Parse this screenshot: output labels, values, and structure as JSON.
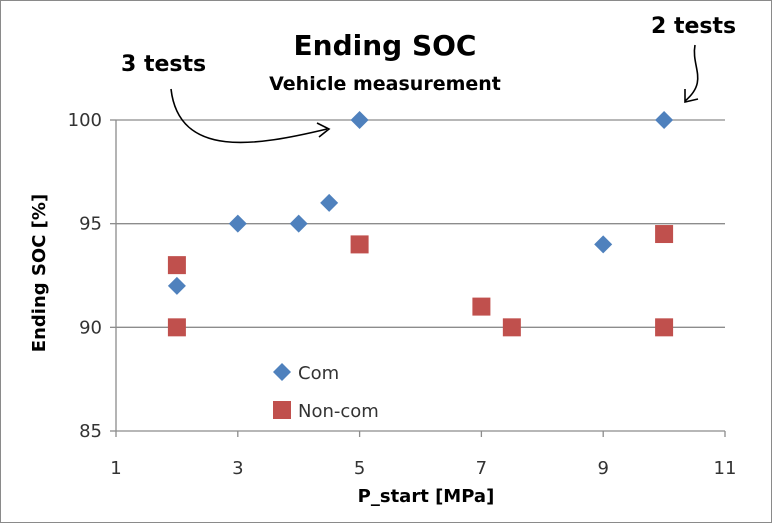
{
  "chart_data": {
    "type": "scatter",
    "title": "Ending SOC",
    "subtitle": "Vehicle measurement",
    "xlabel": "P_start [MPa]",
    "ylabel": "Ending SOC [%]",
    "xlim": [
      1,
      11
    ],
    "ylim": [
      85,
      100
    ],
    "xticks": [
      "1",
      "3",
      "5",
      "7",
      "9",
      "11"
    ],
    "yticks": [
      "85",
      "90",
      "95",
      "100"
    ],
    "xtick_values": [
      1,
      3,
      5,
      7,
      9,
      11
    ],
    "ytick_values": [
      85,
      90,
      95,
      100
    ],
    "grid": "horizontal",
    "legend_position": "lower-left",
    "series": [
      {
        "name": "Com",
        "marker": "diamond",
        "color": "#4f81bd",
        "x": [
          2,
          3,
          4,
          4.5,
          5,
          9,
          10
        ],
        "y": [
          92,
          95,
          95,
          96,
          100,
          94,
          100
        ]
      },
      {
        "name": "Non-com",
        "marker": "square",
        "color": "#c0504d",
        "x": [
          2,
          2,
          5,
          7,
          7.5,
          10,
          10
        ],
        "y": [
          93,
          90,
          94,
          91,
          90,
          94.5,
          90
        ]
      }
    ],
    "annotations": [
      {
        "text": "3 tests",
        "target_x": 5,
        "target_y": 100
      },
      {
        "text": "2 tests",
        "target_x": 10,
        "target_y": 100
      }
    ]
  }
}
